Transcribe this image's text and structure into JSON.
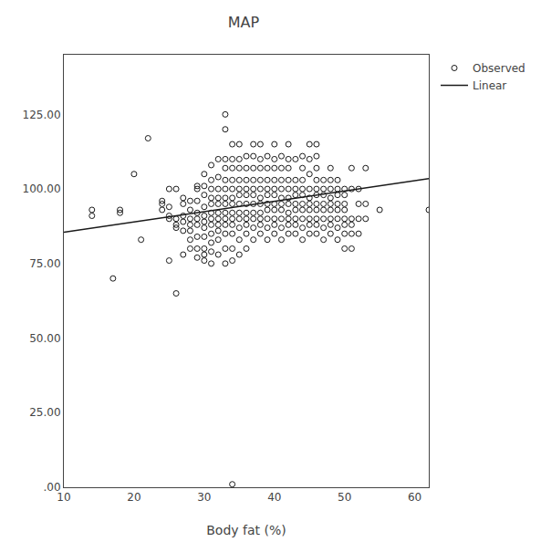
{
  "chart_data": {
    "type": "scatter",
    "title": "MAP",
    "x_label": "Body fat (%)",
    "xlim": [
      10,
      62
    ],
    "ylim": [
      0,
      145
    ],
    "xticks": [
      10,
      20,
      30,
      40,
      50,
      60
    ],
    "yticks": [
      {
        "value": 0,
        "label": ".00"
      },
      {
        "value": 25,
        "label": "25.00"
      },
      {
        "value": 50,
        "label": "50.00"
      },
      {
        "value": 75,
        "label": "75.00"
      },
      {
        "value": 100,
        "label": "100.00"
      },
      {
        "value": 125,
        "label": "125.00"
      }
    ],
    "grid": false,
    "legend": "upper right",
    "series": [
      {
        "name": "Observed",
        "type": "scatter",
        "marker": "circle-open",
        "color": "#1a1a1a",
        "x": [
          14,
          14,
          17,
          18,
          18,
          20,
          21,
          22,
          24,
          24,
          24,
          25,
          25,
          25,
          25,
          25,
          26,
          26,
          26,
          26,
          26,
          27,
          27,
          27,
          27,
          27,
          27,
          28,
          28,
          28,
          28,
          28,
          28,
          28,
          29,
          29,
          29,
          29,
          29,
          29,
          29,
          29,
          29,
          30,
          30,
          30,
          30,
          30,
          30,
          30,
          30,
          30,
          30,
          30,
          31,
          31,
          31,
          31,
          31,
          31,
          31,
          31,
          31,
          31,
          31,
          31,
          32,
          32,
          32,
          32,
          32,
          32,
          32,
          32,
          32,
          32,
          32,
          33,
          33,
          33,
          33,
          33,
          33,
          33,
          33,
          33,
          33,
          33,
          33,
          33,
          33,
          34,
          34,
          34,
          34,
          34,
          34,
          34,
          34,
          34,
          34,
          34,
          34,
          34,
          34,
          35,
          35,
          35,
          35,
          35,
          35,
          35,
          35,
          35,
          35,
          35,
          35,
          36,
          36,
          36,
          36,
          36,
          36,
          36,
          36,
          36,
          36,
          36,
          37,
          37,
          37,
          37,
          37,
          37,
          37,
          37,
          37,
          37,
          37,
          38,
          38,
          38,
          38,
          38,
          38,
          38,
          38,
          38,
          38,
          38,
          39,
          39,
          39,
          39,
          39,
          39,
          39,
          39,
          39,
          39,
          40,
          40,
          40,
          40,
          40,
          40,
          40,
          40,
          40,
          40,
          40,
          41,
          41,
          41,
          41,
          41,
          41,
          41,
          41,
          41,
          41,
          42,
          42,
          42,
          42,
          42,
          42,
          42,
          42,
          42,
          42,
          42,
          43,
          43,
          43,
          43,
          43,
          43,
          43,
          43,
          43,
          44,
          44,
          44,
          44,
          44,
          44,
          44,
          44,
          44,
          44,
          45,
          45,
          45,
          45,
          45,
          45,
          45,
          45,
          45,
          45,
          46,
          46,
          46,
          46,
          46,
          46,
          46,
          46,
          46,
          46,
          46,
          47,
          47,
          47,
          47,
          47,
          47,
          47,
          47,
          48,
          48,
          48,
          48,
          48,
          48,
          48,
          48,
          48,
          49,
          49,
          49,
          49,
          49,
          49,
          49,
          49,
          50,
          50,
          50,
          50,
          50,
          50,
          50,
          50,
          51,
          51,
          51,
          51,
          51,
          51,
          52,
          52,
          52,
          52,
          53,
          53,
          53,
          55,
          62
        ],
        "values": [
          91,
          93,
          70,
          92,
          93,
          105,
          83,
          117,
          93,
          95,
          96,
          76,
          90,
          91,
          94,
          100,
          65,
          87,
          88,
          90,
          100,
          78,
          86,
          89,
          91,
          95,
          97,
          80,
          83,
          86,
          88,
          90,
          93,
          96,
          77,
          80,
          84,
          88,
          90,
          92,
          96,
          100,
          101,
          76,
          78,
          80,
          84,
          87,
          89,
          91,
          94,
          98,
          101,
          105,
          75,
          79,
          82,
          85,
          88,
          90,
          92,
          95,
          97,
          100,
          103,
          108,
          78,
          83,
          86,
          88,
          90,
          92,
          95,
          97,
          100,
          104,
          110,
          75,
          80,
          85,
          88,
          90,
          92,
          95,
          97,
          100,
          103,
          107,
          110,
          120,
          125,
          76,
          80,
          85,
          88,
          90,
          92,
          95,
          97,
          100,
          103,
          107,
          110,
          115,
          1,
          78,
          83,
          87,
          90,
          92,
          95,
          98,
          100,
          103,
          107,
          110,
          115,
          80,
          85,
          88,
          90,
          92,
          95,
          98,
          100,
          103,
          107,
          111,
          83,
          87,
          90,
          92,
          95,
          98,
          100,
          103,
          107,
          111,
          115,
          85,
          88,
          90,
          92,
          95,
          97,
          100,
          103,
          107,
          110,
          115,
          83,
          87,
          90,
          93,
          95,
          98,
          100,
          103,
          107,
          111,
          85,
          88,
          90,
          93,
          95,
          98,
          100,
          103,
          107,
          110,
          115,
          83,
          87,
          90,
          93,
          95,
          97,
          100,
          103,
          107,
          111,
          85,
          88,
          90,
          92,
          95,
          97,
          100,
          103,
          107,
          110,
          115,
          85,
          88,
          90,
          93,
          95,
          98,
          100,
          103,
          110,
          83,
          87,
          90,
          93,
          95,
          98,
          100,
          103,
          107,
          111,
          85,
          88,
          90,
          93,
          95,
          97,
          100,
          105,
          110,
          115,
          85,
          88,
          90,
          93,
          95,
          98,
          100,
          103,
          107,
          111,
          115,
          83,
          87,
          90,
          93,
          95,
          98,
          100,
          103,
          85,
          88,
          90,
          93,
          95,
          97,
          100,
          103,
          107,
          83,
          87,
          90,
          93,
          95,
          98,
          100,
          103,
          80,
          85,
          88,
          90,
          93,
          95,
          98,
          100,
          80,
          85,
          88,
          90,
          100,
          107,
          85,
          90,
          95,
          100,
          90,
          95,
          107,
          93,
          93
        ]
      },
      {
        "name": "Linear",
        "type": "line",
        "color": "#1a1a1a",
        "x": [
          10,
          62
        ],
        "values": [
          85.5,
          103.5
        ]
      }
    ]
  }
}
